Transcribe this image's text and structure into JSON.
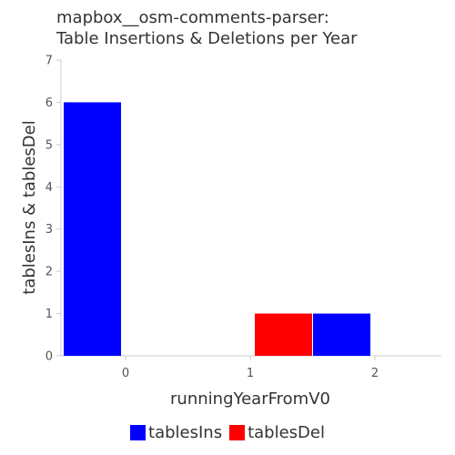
{
  "chart_data": {
    "type": "bar",
    "title_line1": "mapbox__osm-comments-parser:",
    "title_line2": "Table Insertions & Deletions per Year",
    "xlabel": "runningYearFromV0",
    "ylabel": "tablesIns & tablesDel",
    "categories": [
      "0",
      "1",
      "2"
    ],
    "ylim": [
      0,
      7
    ],
    "yticks": [
      0,
      1,
      2,
      3,
      4,
      5,
      6,
      7
    ],
    "series": [
      {
        "name": "tablesIns",
        "color": "#0000ff",
        "values": [
          6,
          0,
          1
        ]
      },
      {
        "name": "tablesDel",
        "color": "#ff0000",
        "values": [
          0,
          1,
          0
        ]
      }
    ],
    "legend_position": "bottom",
    "grid": false
  }
}
